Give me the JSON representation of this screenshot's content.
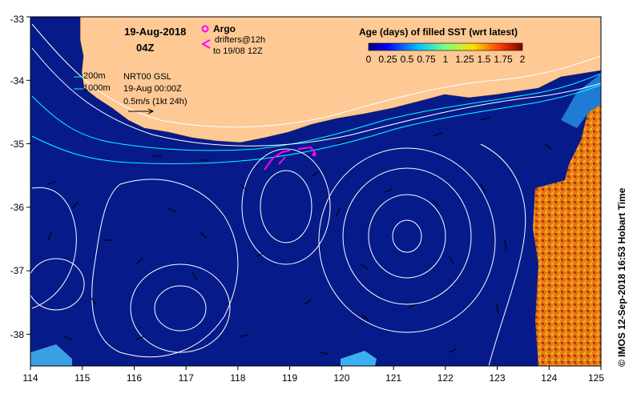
{
  "header": {
    "date": "19-Aug-2018",
    "hour": "04Z"
  },
  "legend_markers": {
    "argo_label": "Argo",
    "argo_color": "#ff00ff",
    "drifters_label": "drifters@12h",
    "drifters_range": "to 19/08 12Z",
    "drifter_color": "#ff00ff"
  },
  "contours": {
    "isobath_200": "200m",
    "isobath_1000": "1000m",
    "isobath_color": "#00ffff"
  },
  "altimetry": {
    "product": "NRT00 GSL",
    "time": "19-Aug 00:00Z",
    "scale": "0.5m/s (1kt 24h)"
  },
  "colorbar": {
    "title": "Age (days) of filled SST (wrt latest)",
    "labels": [
      "0",
      "0.25",
      "0.5",
      "0.75",
      "1",
      "1.25",
      "1.5",
      "1.75",
      "2"
    ]
  },
  "credit": "© IMOS 12-Sep-2018 16:53 Hobart Time",
  "axes": {
    "x_ticks": [
      "114",
      "115",
      "116",
      "117",
      "118",
      "119",
      "120",
      "121",
      "122",
      "123",
      "124",
      "125"
    ],
    "y_ticks": [
      "-33",
      "-34",
      "-35",
      "-36",
      "-37",
      "-38"
    ]
  },
  "colors": {
    "ocean": "#061a8a",
    "land": "#fec994",
    "contour": "#ffffff"
  }
}
